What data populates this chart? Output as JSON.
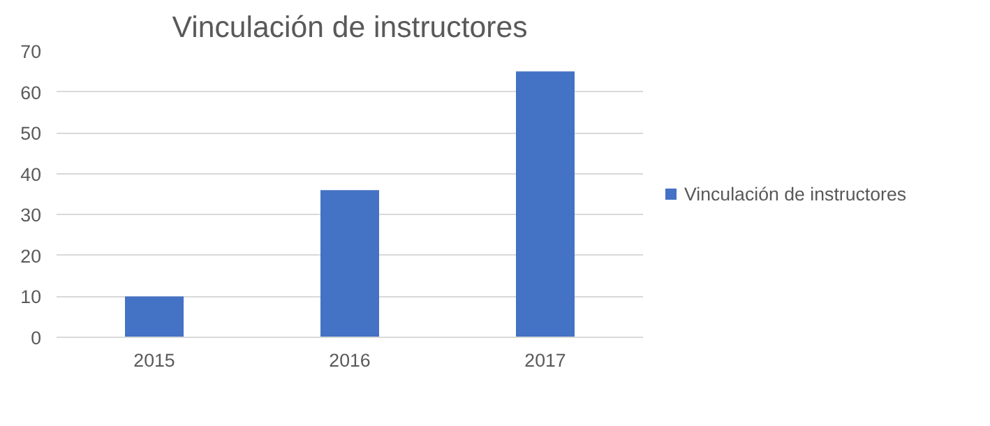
{
  "chart_data": {
    "type": "bar",
    "title": "Vinculación de instructores",
    "categories": [
      "2015",
      "2016",
      "2017"
    ],
    "series": [
      {
        "name": "Vinculación de instructores",
        "color": "#4472c4",
        "values": [
          10,
          36,
          65
        ]
      }
    ],
    "ylim": [
      0,
      70
    ],
    "yticks": [
      0,
      10,
      20,
      30,
      40,
      50,
      60,
      70
    ],
    "grid": "y",
    "legend": "right"
  }
}
